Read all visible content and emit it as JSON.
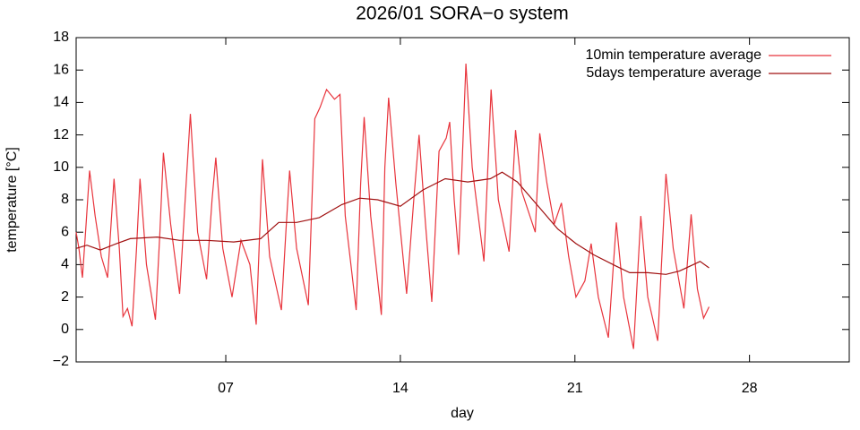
{
  "chart_data": {
    "type": "line",
    "title": "2026/01 SORA−o system",
    "xlabel": "day",
    "ylabel": "temperature [°C]",
    "xlim": [
      1,
      32
    ],
    "xticks": [
      {
        "value": 7,
        "label": "07"
      },
      {
        "value": 14,
        "label": "14"
      },
      {
        "value": 21,
        "label": "21"
      },
      {
        "value": 28,
        "label": "28"
      }
    ],
    "ylim": [
      -2,
      18
    ],
    "yticks": [
      {
        "value": -2,
        "label": "−2"
      },
      0,
      2,
      4,
      6,
      8,
      10,
      12,
      14,
      16,
      18
    ],
    "legend": "top-right",
    "series": [
      {
        "name": "10min temperature average",
        "color": "#e8343c",
        "x": [
          1.0,
          1.11,
          1.25,
          1.4,
          1.54,
          1.76,
          2.01,
          2.26,
          2.52,
          2.73,
          2.88,
          3.06,
          3.24,
          3.42,
          3.56,
          3.82,
          4.18,
          4.36,
          4.5,
          4.79,
          5.15,
          5.37,
          5.58,
          5.87,
          6.23,
          6.45,
          6.6,
          6.88,
          7.25,
          7.61,
          7.97,
          8.22,
          8.36,
          8.47,
          8.76,
          9.23,
          9.41,
          9.56,
          9.84,
          10.31,
          10.57,
          10.78,
          11.04,
          11.36,
          11.58,
          11.79,
          12.23,
          12.41,
          12.55,
          12.81,
          13.24,
          13.38,
          13.53,
          13.82,
          14.25,
          14.54,
          14.75,
          15.01,
          15.26,
          15.55,
          15.84,
          15.98,
          16.16,
          16.34,
          16.63,
          16.88,
          17.35,
          17.64,
          17.93,
          18.36,
          18.62,
          18.87,
          19.41,
          19.59,
          19.88,
          20.17,
          20.46,
          20.75,
          21.04,
          21.4,
          21.65,
          21.94,
          22.34,
          22.66,
          22.95,
          23.35,
          23.64,
          23.92,
          24.32,
          24.65,
          24.94,
          25.37,
          25.66,
          25.91,
          26.16,
          26.38
        ],
        "values": [
          6.0,
          5.0,
          3.2,
          6.5,
          9.8,
          7.0,
          4.5,
          3.2,
          9.3,
          5.0,
          0.8,
          1.3,
          0.2,
          5.0,
          9.3,
          4.0,
          0.6,
          6.0,
          10.9,
          6.5,
          2.2,
          8.0,
          13.3,
          6.0,
          3.1,
          8.0,
          10.6,
          5.0,
          2.0,
          5.5,
          4.0,
          0.3,
          6.0,
          10.5,
          4.5,
          1.2,
          6.0,
          9.8,
          5.0,
          1.5,
          13.0,
          13.7,
          14.8,
          14.2,
          14.5,
          7.0,
          1.2,
          9.0,
          13.1,
          7.0,
          0.9,
          10.0,
          14.3,
          9.0,
          2.2,
          8.0,
          12.0,
          6.5,
          1.7,
          11.0,
          11.8,
          12.8,
          8.0,
          4.6,
          16.4,
          10.0,
          4.2,
          14.8,
          8.0,
          4.8,
          12.3,
          8.5,
          6.0,
          12.1,
          9.0,
          6.5,
          7.8,
          4.5,
          2.0,
          3.0,
          5.3,
          2.0,
          -0.5,
          6.6,
          2.0,
          -1.2,
          7.0,
          2.0,
          -0.7,
          9.6,
          5.0,
          1.3,
          7.1,
          2.5,
          0.7,
          1.4
        ]
      },
      {
        "name": "5days temperature average",
        "color": "#a01010",
        "x": [
          1.0,
          1.43,
          1.97,
          2.62,
          3.17,
          4.25,
          5.15,
          6.23,
          7.32,
          8.4,
          9.12,
          9.84,
          10.75,
          11.65,
          12.37,
          13.09,
          14.0,
          14.9,
          15.8,
          16.7,
          17.61,
          18.08,
          18.69,
          19.59,
          20.31,
          21.04,
          21.76,
          22.66,
          23.2,
          23.92,
          24.65,
          25.19,
          26.02,
          26.38
        ],
        "values": [
          5.0,
          5.2,
          4.9,
          5.3,
          5.6,
          5.7,
          5.5,
          5.5,
          5.4,
          5.6,
          6.6,
          6.6,
          6.9,
          7.7,
          8.1,
          8.0,
          7.6,
          8.6,
          9.3,
          9.1,
          9.3,
          9.7,
          9.1,
          7.5,
          6.2,
          5.3,
          4.6,
          3.9,
          3.5,
          3.5,
          3.4,
          3.6,
          4.2,
          3.8
        ]
      }
    ]
  }
}
